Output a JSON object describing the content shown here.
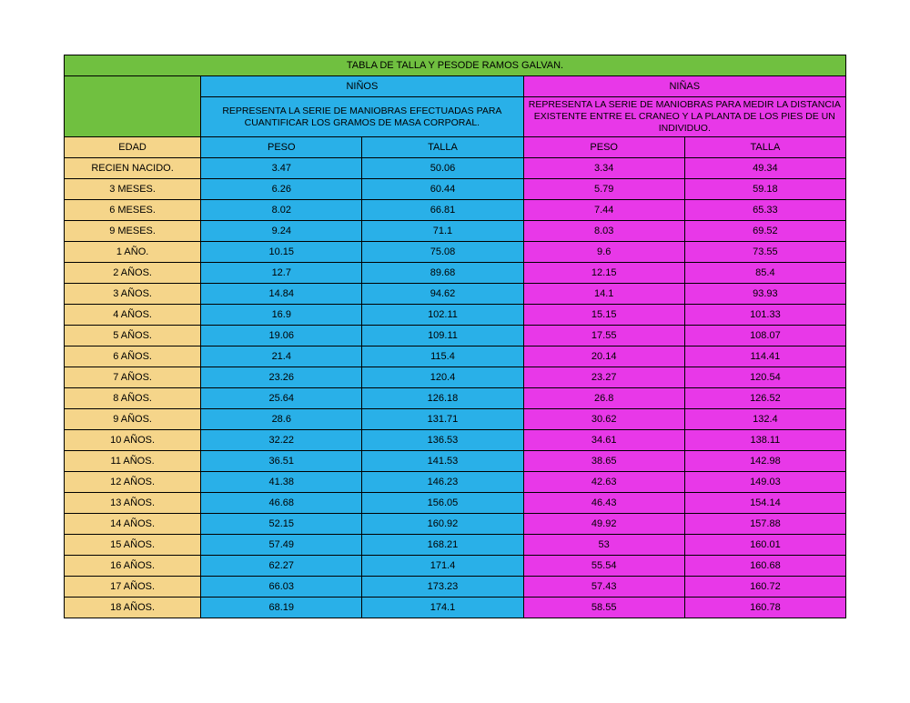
{
  "colors": {
    "green": "#70c040",
    "blue": "#29b0e8",
    "pink": "#e838e8",
    "tan": "#f5d58a",
    "border": "#000000"
  },
  "title": "TABLA DE TALLA Y PESODE RAMOS GALVAN.",
  "group_boys": "NIÑOS",
  "group_girls": "NIÑAS",
  "desc_boys": "REPRESENTA LA SERIE DE MANIOBRAS EFECTUADAS PARA CUANTIFICAR LOS GRAMOS DE MASA CORPORAL.",
  "desc_girls": "REPRESENTA LA SERIE DE MANIOBRAS PARA MEDIR LA DISTANCIA EXISTENTE ENTRE EL CRANEO Y LA PLANTA DE LOS PIES DE UN INDIVIDUO.",
  "headers": {
    "edad": "EDAD",
    "peso": "PESO",
    "talla": "TALLA"
  },
  "col_widths": {
    "edad": 150,
    "data": 177
  },
  "rows": [
    {
      "edad": "RECIEN NACIDO.",
      "bp": "3.47",
      "bt": "50.06",
      "gp": "3.34",
      "gt": "49.34"
    },
    {
      "edad": "3 MESES.",
      "bp": "6.26",
      "bt": "60.44",
      "gp": "5.79",
      "gt": "59.18"
    },
    {
      "edad": "6 MESES.",
      "bp": "8.02",
      "bt": "66.81",
      "gp": "7.44",
      "gt": "65.33"
    },
    {
      "edad": "9 MESES.",
      "bp": "9.24",
      "bt": "71.1",
      "gp": "8.03",
      "gt": "69.52"
    },
    {
      "edad": "1 AÑO.",
      "bp": "10.15",
      "bt": "75.08",
      "gp": "9.6",
      "gt": "73.55"
    },
    {
      "edad": "2 AÑOS.",
      "bp": "12.7",
      "bt": "89.68",
      "gp": "12.15",
      "gt": "85.4"
    },
    {
      "edad": "3 AÑOS.",
      "bp": "14.84",
      "bt": "94.62",
      "gp": "14.1",
      "gt": "93.93"
    },
    {
      "edad": "4 AÑOS.",
      "bp": "16.9",
      "bt": "102.11",
      "gp": "15.15",
      "gt": "101.33"
    },
    {
      "edad": "5 AÑOS.",
      "bp": "19.06",
      "bt": "109.11",
      "gp": "17.55",
      "gt": "108.07"
    },
    {
      "edad": "6 AÑOS.",
      "bp": "21.4",
      "bt": "115.4",
      "gp": "20.14",
      "gt": "114.41"
    },
    {
      "edad": "7 AÑOS.",
      "bp": "23.26",
      "bt": "120.4",
      "gp": "23.27",
      "gt": "120.54"
    },
    {
      "edad": "8 AÑOS.",
      "bp": "25.64",
      "bt": "126.18",
      "gp": "26.8",
      "gt": "126.52"
    },
    {
      "edad": "9 AÑOS.",
      "bp": "28.6",
      "bt": "131.71",
      "gp": "30.62",
      "gt": "132.4"
    },
    {
      "edad": "10 AÑOS.",
      "bp": "32.22",
      "bt": "136.53",
      "gp": "34.61",
      "gt": "138.11"
    },
    {
      "edad": "11 AÑOS.",
      "bp": "36.51",
      "bt": "141.53",
      "gp": "38.65",
      "gt": "142.98"
    },
    {
      "edad": "12 AÑOS.",
      "bp": "41.38",
      "bt": "146.23",
      "gp": "42.63",
      "gt": "149.03"
    },
    {
      "edad": "13 AÑOS.",
      "bp": "46.68",
      "bt": "156.05",
      "gp": "46.43",
      "gt": "154.14"
    },
    {
      "edad": "14 AÑOS.",
      "bp": "52.15",
      "bt": "160.92",
      "gp": "49.92",
      "gt": "157.88"
    },
    {
      "edad": "15 AÑOS.",
      "bp": "57.49",
      "bt": "168.21",
      "gp": "53",
      "gt": "160.01"
    },
    {
      "edad": "16 AÑOS.",
      "bp": "62.27",
      "bt": "171.4",
      "gp": "55.54",
      "gt": "160.68"
    },
    {
      "edad": "17 AÑOS.",
      "bp": "66.03",
      "bt": "173.23",
      "gp": "57.43",
      "gt": "160.72"
    },
    {
      "edad": "18 AÑOS.",
      "bp": "68.19",
      "bt": "174.1",
      "gp": "58.55",
      "gt": "160.78"
    }
  ]
}
